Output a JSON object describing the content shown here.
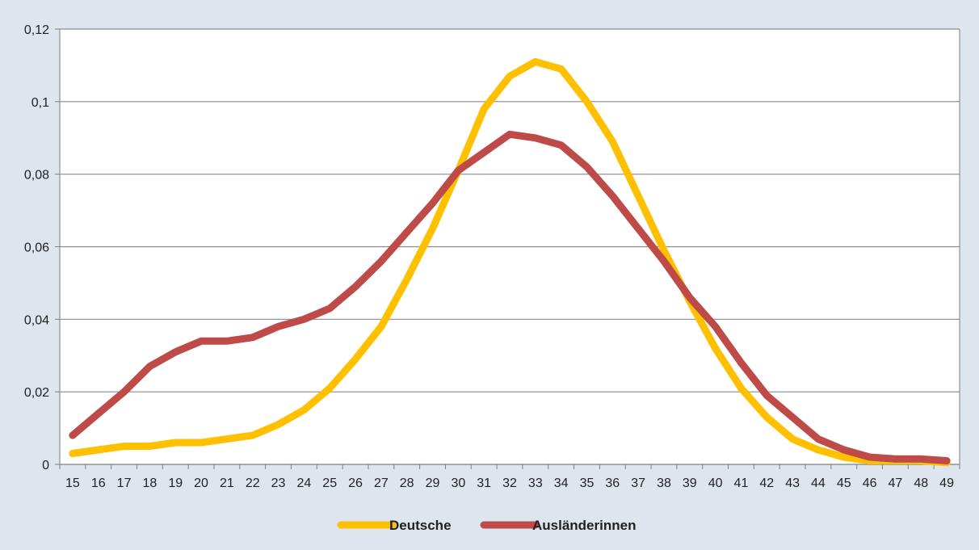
{
  "chart_data": {
    "type": "line",
    "x": [
      15,
      16,
      17,
      18,
      19,
      20,
      21,
      22,
      23,
      24,
      25,
      26,
      27,
      28,
      29,
      30,
      31,
      32,
      33,
      34,
      35,
      36,
      37,
      38,
      39,
      40,
      41,
      42,
      43,
      44,
      45,
      46,
      47,
      48,
      49
    ],
    "series": [
      {
        "name": "Deutsche",
        "color": "#ffc000",
        "values": [
          0.003,
          0.004,
          0.005,
          0.005,
          0.006,
          0.006,
          0.007,
          0.008,
          0.011,
          0.015,
          0.021,
          0.029,
          0.038,
          0.051,
          0.065,
          0.081,
          0.098,
          0.107,
          0.111,
          0.109,
          0.1,
          0.089,
          0.074,
          0.059,
          0.045,
          0.032,
          0.021,
          0.013,
          0.007,
          0.004,
          0.002,
          0.001,
          0.001,
          0.001,
          0.0005
        ]
      },
      {
        "name": "Ausländerinnen",
        "color": "#be4b48",
        "values": [
          0.008,
          0.014,
          0.02,
          0.027,
          0.031,
          0.034,
          0.034,
          0.035,
          0.038,
          0.04,
          0.043,
          0.049,
          0.056,
          0.064,
          0.072,
          0.081,
          0.086,
          0.091,
          0.09,
          0.088,
          0.082,
          0.074,
          0.065,
          0.056,
          0.046,
          0.038,
          0.028,
          0.019,
          0.013,
          0.007,
          0.004,
          0.002,
          0.0015,
          0.0015,
          0.001
        ]
      }
    ],
    "y_ticks": [
      "0",
      "0,02",
      "0,04",
      "0,06",
      "0,08",
      "0,1",
      "0,12"
    ],
    "ylim": [
      0,
      0.12
    ],
    "grid": "horizontal",
    "legend_position": "bottom-center",
    "background": "#dde5ef",
    "plot_background": "#ffffff"
  }
}
